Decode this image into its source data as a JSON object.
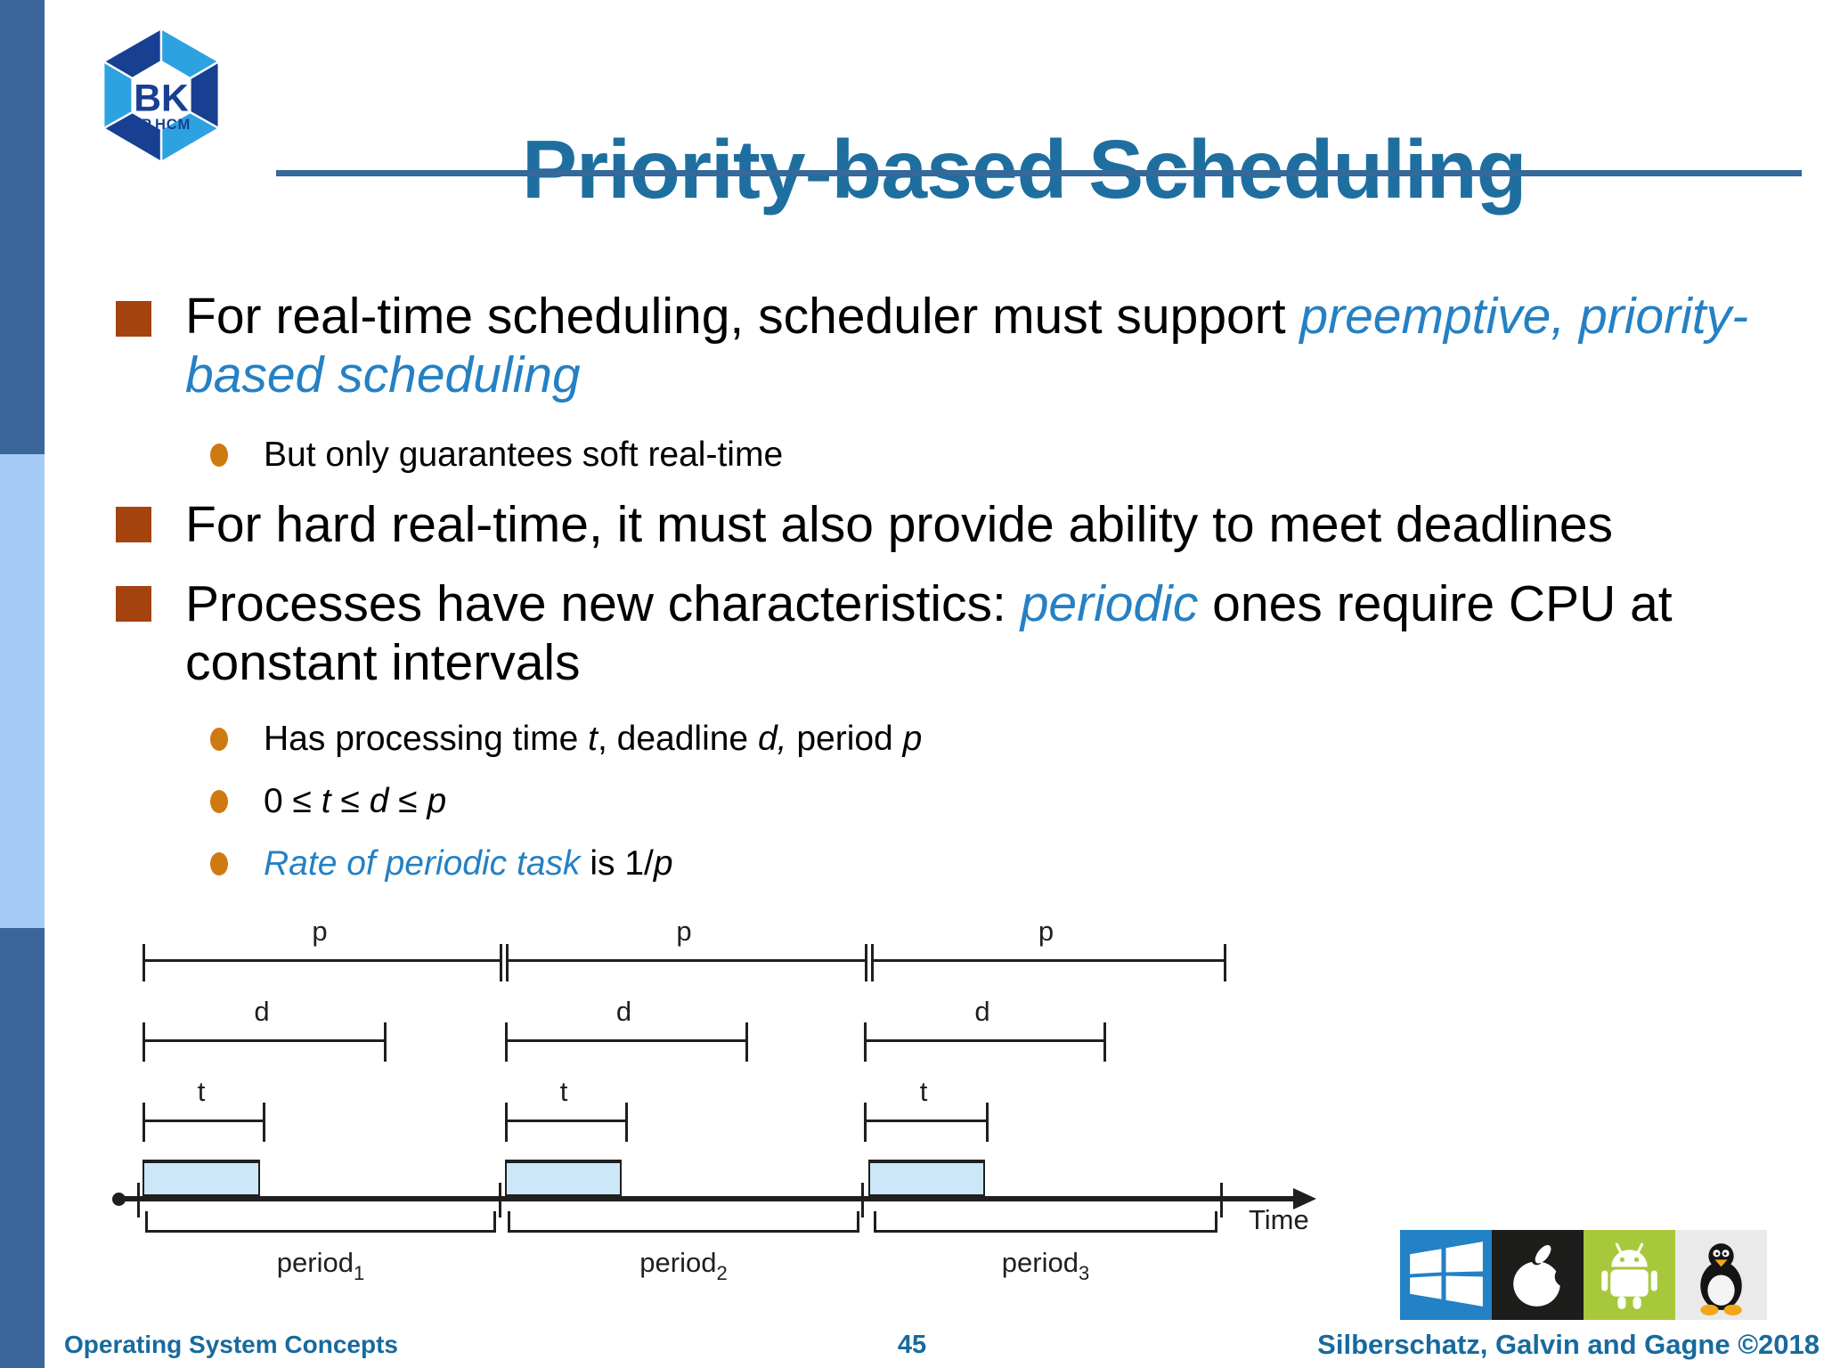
{
  "title": "Priority-based Scheduling",
  "logo": {
    "text": "BK",
    "subtext": "TP.HCM"
  },
  "bullets": [
    {
      "level": 1,
      "segments": [
        {
          "style": "plain",
          "text": "For real-time scheduling, scheduler must support "
        },
        {
          "style": "blue-italic",
          "text": "preemptive,"
        },
        {
          "style": "plain",
          "text": " "
        },
        {
          "style": "blue-italic",
          "text": "priority-"
        },
        {
          "style": "break"
        },
        {
          "style": "blue-italic",
          "text": "based scheduling"
        }
      ]
    },
    {
      "level": 2,
      "segments": [
        {
          "style": "plain",
          "text": "But only guarantees soft real-time"
        }
      ]
    },
    {
      "level": 1,
      "segments": [
        {
          "style": "plain",
          "text": "For hard real-time, it must also provide ability to meet deadlines"
        }
      ]
    },
    {
      "level": 1,
      "segments": [
        {
          "style": "plain",
          "text": "Processes have new characteristics: "
        },
        {
          "style": "blue-italic",
          "text": "periodic"
        },
        {
          "style": "plain",
          "text": " ones require CPU at"
        },
        {
          "style": "break"
        },
        {
          "style": "plain",
          "text": "constant intervals"
        }
      ]
    },
    {
      "level": 2,
      "segments": [
        {
          "style": "plain",
          "text": "Has processing time "
        },
        {
          "style": "italic",
          "text": "t"
        },
        {
          "style": "plain",
          "text": ", deadline "
        },
        {
          "style": "italic",
          "text": "d,"
        },
        {
          "style": "plain",
          "text": " period "
        },
        {
          "style": "italic",
          "text": "p"
        }
      ]
    },
    {
      "level": 2,
      "segments": [
        {
          "style": "plain",
          "text": "0 ≤ "
        },
        {
          "style": "italic",
          "text": "t"
        },
        {
          "style": "plain",
          "text": " ≤ "
        },
        {
          "style": "italic",
          "text": "d"
        },
        {
          "style": "plain",
          "text": " ≤ "
        },
        {
          "style": "italic",
          "text": "p"
        }
      ]
    },
    {
      "level": 2,
      "segments": [
        {
          "style": "blue-italic",
          "text": "Rate of periodic task"
        },
        {
          "style": "plain",
          "text": " is 1/"
        },
        {
          "style": "italic",
          "text": "p"
        }
      ]
    }
  ],
  "diagram": {
    "p_label": "p",
    "d_label": "d",
    "t_label": "t",
    "time_label": "Time",
    "periods": [
      {
        "base": "period",
        "sub": "1"
      },
      {
        "base": "period",
        "sub": "2"
      },
      {
        "base": "period",
        "sub": "3"
      }
    ]
  },
  "footer": {
    "left": "Operating System Concepts",
    "page": "45",
    "right": "Silberschatz, Galvin and Gagne ©2018"
  },
  "os_logos": [
    "windows",
    "apple",
    "android",
    "linux"
  ],
  "colors": {
    "title_blue": "#1e6fa0",
    "rule_blue": "#35689b",
    "sidebar_dark": "#3a669c",
    "sidebar_light": "#a6cbf7",
    "accent_text_blue": "#2580c4",
    "bullet_square": "#a5430e",
    "bullet_circle": "#cf7a10",
    "task_fill": "#cbe7f8",
    "diagram_line": "#1f1f1f",
    "footer_blue": "#176a9e",
    "windows_bg": "#2381c6",
    "apple_bg": "#1d1d1b",
    "android_bg": "#a8c83c",
    "linux_bg": "#eaeaea",
    "logo_navy": "#174092",
    "logo_azure": "#2da2e0"
  }
}
